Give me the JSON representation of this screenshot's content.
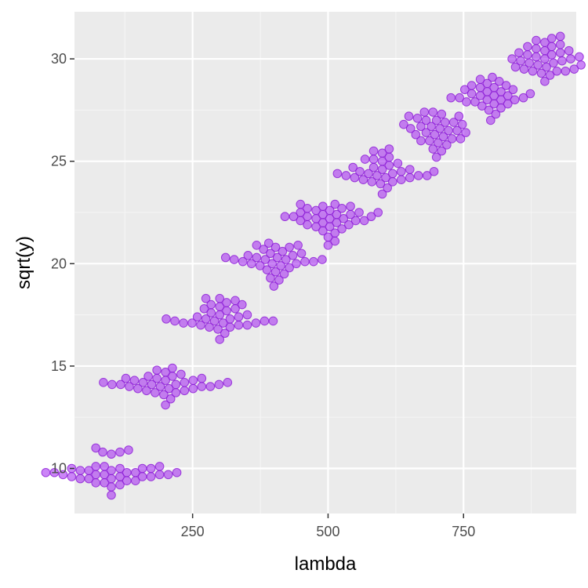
{
  "chart_data": {
    "type": "scatter",
    "title": "",
    "xlabel": "lambda",
    "ylabel": "sqrt(y)",
    "xlim": [
      32,
      958
    ],
    "ylim": [
      7.8,
      32.3
    ],
    "x_ticks": [
      250,
      500,
      750
    ],
    "x_minor_ticks": [
      125,
      375,
      625,
      875
    ],
    "y_ticks": [
      10,
      15,
      20,
      25,
      30
    ],
    "y_minor_ticks": [
      12.5,
      17.5,
      22.5,
      27.5
    ],
    "grid": true,
    "legend": "none",
    "colors": {
      "point_fill": "#a020f0",
      "point_stroke": "#8b1ad6",
      "panel_background": "#ebebeb",
      "grid_major": "#ffffff",
      "grid_minor": "#f5f5f5"
    },
    "groups": [
      {
        "lambda": 100,
        "values": [
          8.7,
          9.1,
          9.2,
          9.3,
          9.3,
          9.4,
          9.4,
          9.5,
          9.5,
          9.5,
          9.6,
          9.6,
          9.6,
          9.6,
          9.7,
          9.7,
          9.7,
          9.7,
          9.7,
          9.8,
          9.8,
          9.8,
          9.8,
          9.8,
          9.9,
          9.9,
          9.9,
          10.0,
          10.0,
          10.0,
          10.0,
          10.1,
          10.1,
          10.1,
          10.7,
          10.8,
          10.8,
          10.9,
          11.0
        ]
      },
      {
        "lambda": 200,
        "values": [
          13.1,
          13.4,
          13.6,
          13.7,
          13.7,
          13.8,
          13.8,
          13.9,
          13.9,
          13.9,
          14.0,
          14.0,
          14.0,
          14.0,
          14.1,
          14.1,
          14.1,
          14.1,
          14.1,
          14.2,
          14.2,
          14.2,
          14.2,
          14.3,
          14.3,
          14.3,
          14.4,
          14.4,
          14.4,
          14.5,
          14.5,
          14.6,
          14.7,
          14.8,
          14.9
        ]
      },
      {
        "lambda": 300,
        "values": [
          16.3,
          16.6,
          16.8,
          16.9,
          16.9,
          17.0,
          17.0,
          17.0,
          17.1,
          17.1,
          17.1,
          17.1,
          17.2,
          17.2,
          17.2,
          17.2,
          17.3,
          17.3,
          17.3,
          17.4,
          17.4,
          17.5,
          17.5,
          17.6,
          17.7,
          17.8,
          17.8,
          17.9,
          18.0,
          18.0,
          18.1,
          18.2,
          18.3,
          18.3
        ]
      },
      {
        "lambda": 400,
        "values": [
          18.9,
          19.2,
          19.3,
          19.5,
          19.6,
          19.7,
          19.8,
          19.9,
          19.9,
          20.0,
          20.0,
          20.0,
          20.1,
          20.1,
          20.1,
          20.2,
          20.2,
          20.2,
          20.2,
          20.3,
          20.3,
          20.3,
          20.4,
          20.4,
          20.5,
          20.5,
          20.6,
          20.7,
          20.8,
          20.8,
          20.9,
          20.9,
          21.0
        ]
      },
      {
        "lambda": 500,
        "values": [
          20.9,
          21.1,
          21.3,
          21.5,
          21.6,
          21.7,
          21.8,
          21.8,
          21.9,
          21.9,
          22.0,
          22.0,
          22.1,
          22.1,
          22.1,
          22.2,
          22.2,
          22.2,
          22.3,
          22.3,
          22.3,
          22.3,
          22.4,
          22.4,
          22.4,
          22.5,
          22.5,
          22.5,
          22.6,
          22.6,
          22.7,
          22.7,
          22.8,
          22.8,
          22.9,
          22.9
        ]
      },
      {
        "lambda": 600,
        "values": [
          23.4,
          23.7,
          23.9,
          24.0,
          24.0,
          24.1,
          24.1,
          24.2,
          24.2,
          24.2,
          24.3,
          24.3,
          24.3,
          24.3,
          24.4,
          24.4,
          24.4,
          24.5,
          24.5,
          24.5,
          24.6,
          24.6,
          24.7,
          24.7,
          24.8,
          24.9,
          25.0,
          25.1,
          25.1,
          25.2,
          25.4,
          25.5,
          25.6
        ]
      },
      {
        "lambda": 700,
        "values": [
          25.2,
          25.5,
          25.6,
          25.8,
          25.9,
          26.0,
          26.0,
          26.1,
          26.1,
          26.2,
          26.3,
          26.3,
          26.4,
          26.4,
          26.5,
          26.5,
          26.6,
          26.6,
          26.7,
          26.7,
          26.8,
          26.8,
          26.9,
          26.9,
          27.0,
          27.0,
          27.1,
          27.2,
          27.2,
          27.3,
          27.4,
          27.4
        ]
      },
      {
        "lambda": 800,
        "values": [
          27.0,
          27.3,
          27.5,
          27.6,
          27.7,
          27.8,
          27.8,
          27.9,
          27.9,
          28.0,
          28.0,
          28.0,
          28.1,
          28.1,
          28.1,
          28.2,
          28.2,
          28.2,
          28.3,
          28.3,
          28.4,
          28.4,
          28.5,
          28.5,
          28.6,
          28.6,
          28.7,
          28.7,
          28.8,
          28.9,
          29.0,
          29.1
        ]
      },
      {
        "lambda": 900,
        "values": [
          28.9,
          29.2,
          29.3,
          29.4,
          29.4,
          29.4,
          29.5,
          29.5,
          29.6,
          29.6,
          29.7,
          29.7,
          29.8,
          29.8,
          29.9,
          29.9,
          30.0,
          30.0,
          30.0,
          30.1,
          30.1,
          30.2,
          30.2,
          30.3,
          30.3,
          30.4,
          30.4,
          30.5,
          30.6,
          30.6,
          30.7,
          30.8,
          30.9,
          31.0,
          31.1
        ]
      }
    ]
  }
}
